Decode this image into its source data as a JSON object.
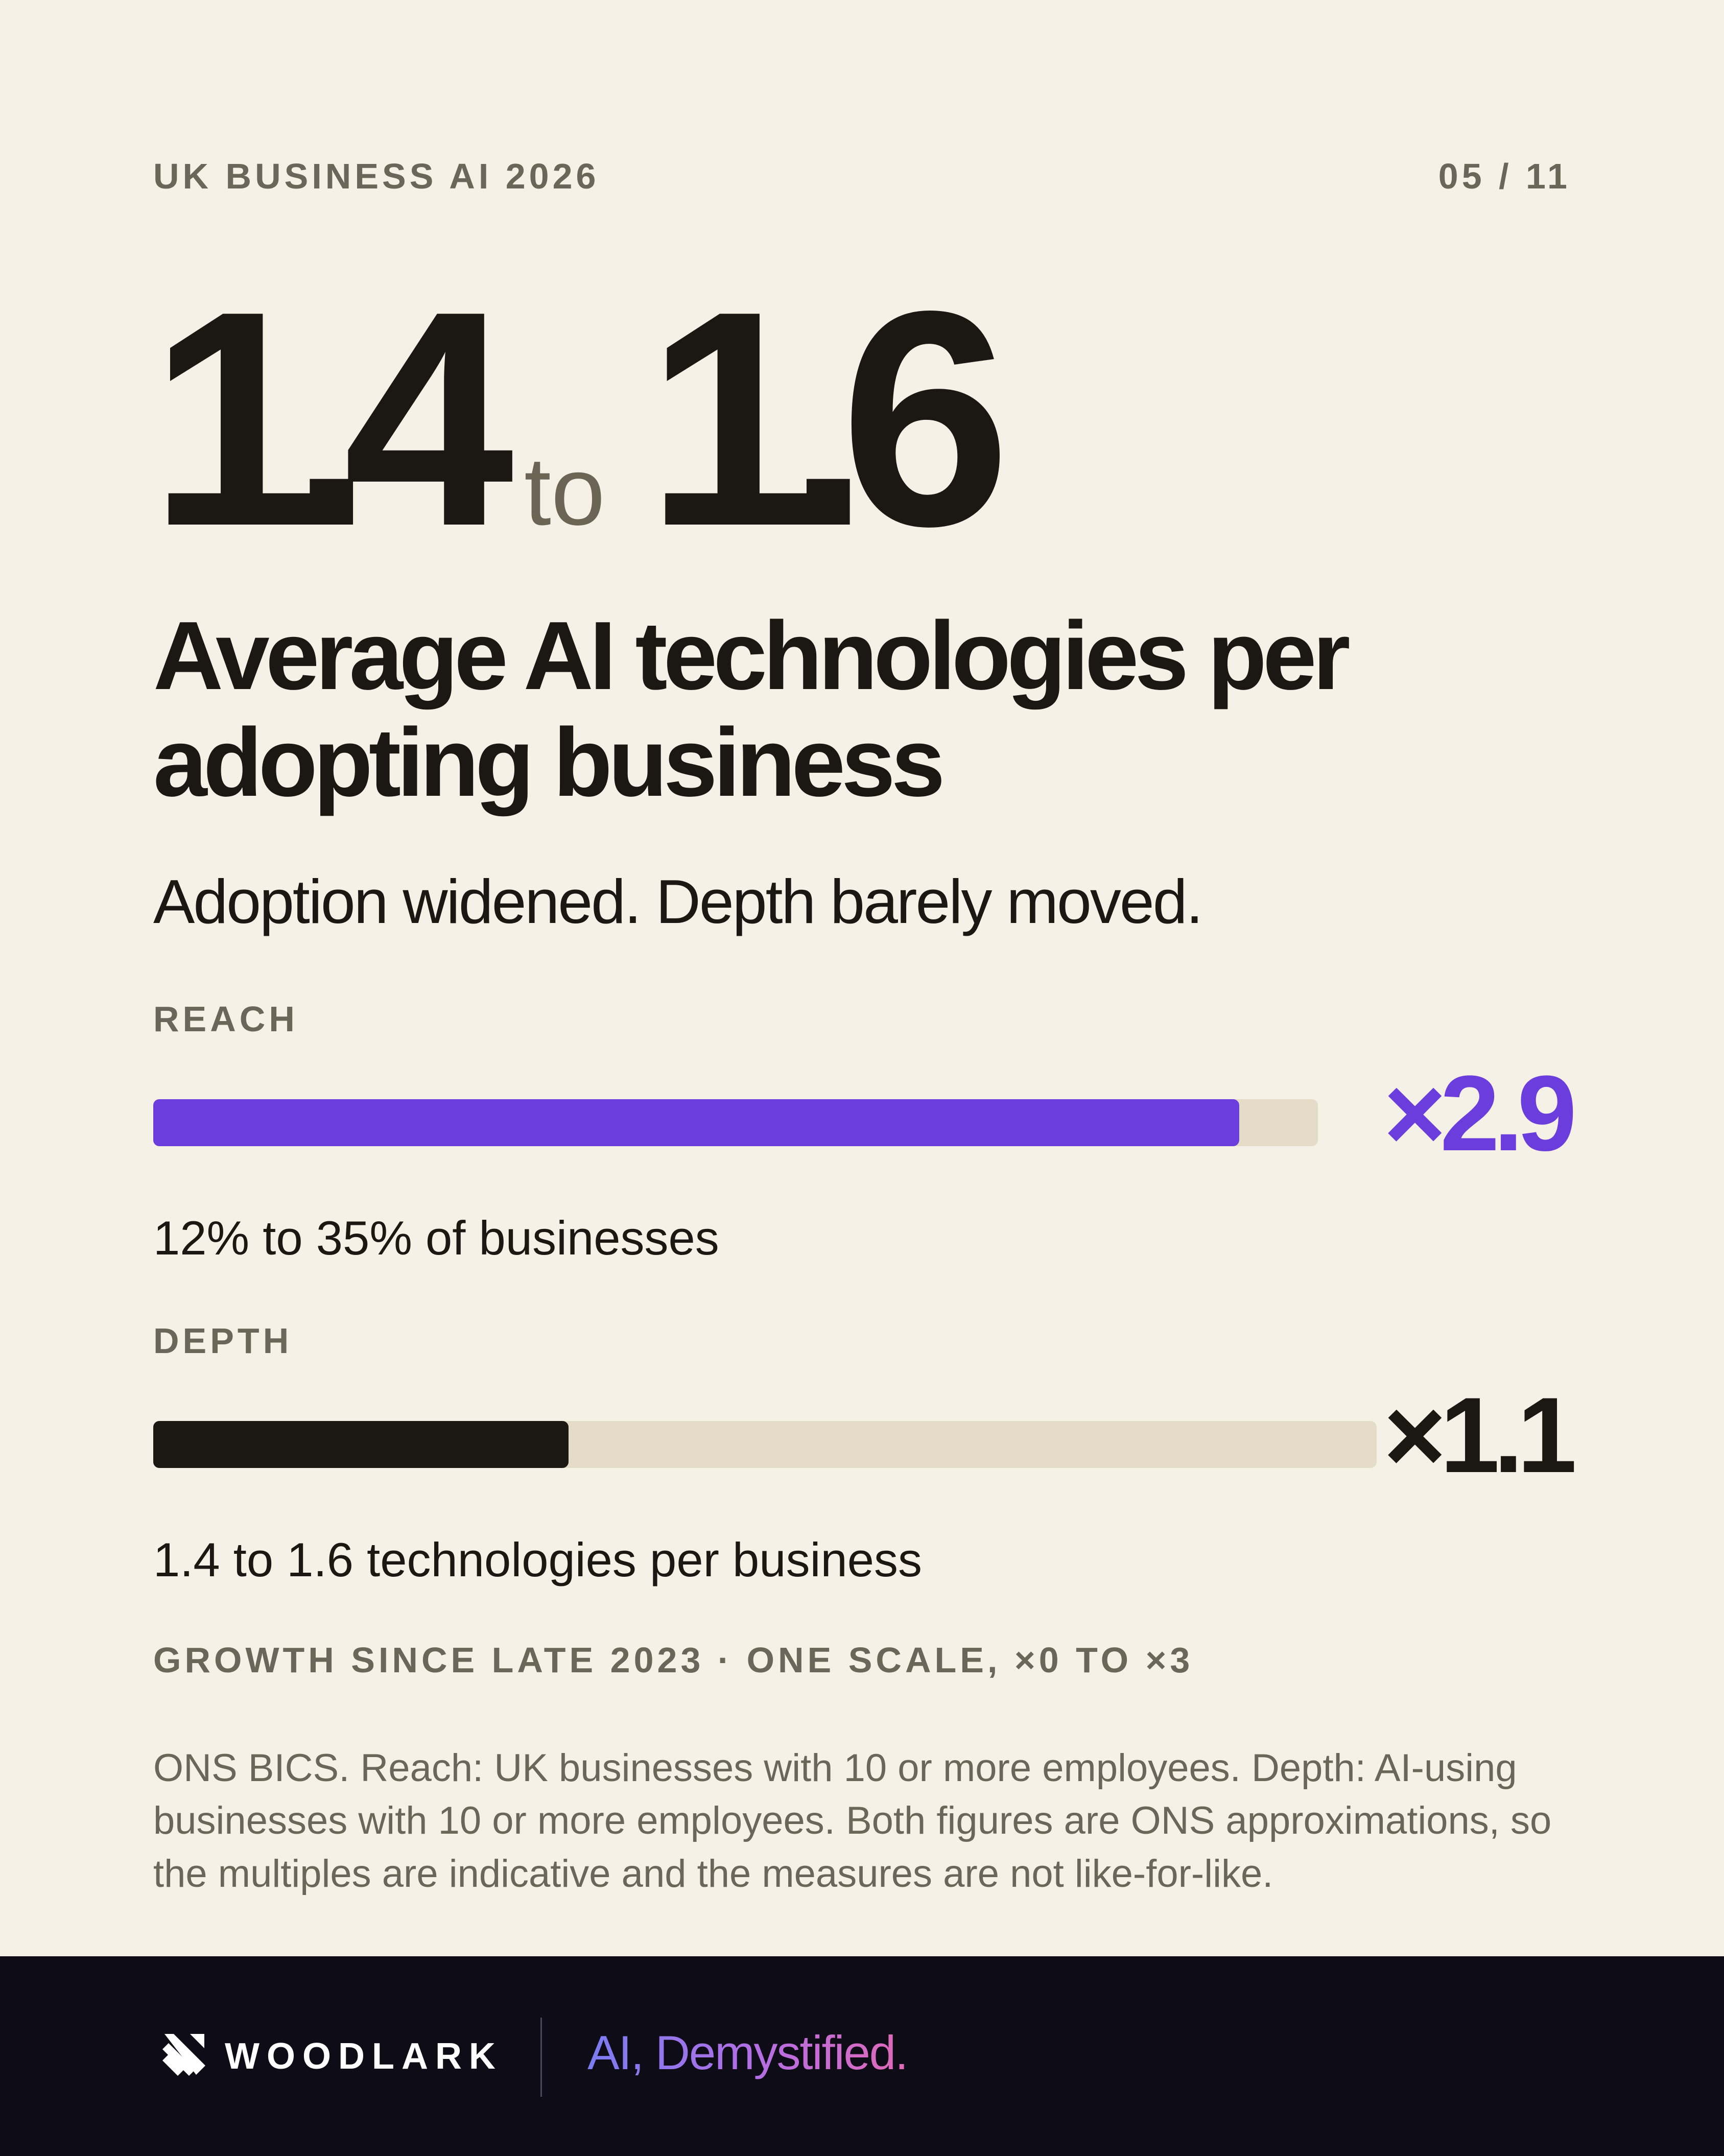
{
  "header": {
    "eyebrow": "UK BUSINESS AI 2026",
    "page_number": "05 / 11"
  },
  "hero": {
    "from": "1.4",
    "connector": "to",
    "to": "1.6"
  },
  "headline": "Average AI technologies per adopting business",
  "subhead": "Adoption widened. Depth barely moved.",
  "reach": {
    "label": "REACH",
    "multiplier": "×2.9",
    "value": 2.9,
    "note": "12% to 35% of businesses",
    "color": "#6b3ddc"
  },
  "depth": {
    "label": "DEPTH",
    "multiplier": "×1.1",
    "value": 1.1,
    "note": "1.4 to 1.6 technologies per business",
    "color": "#1b1712"
  },
  "scale": {
    "note": "GROWTH SINCE LATE 2023 · ONE SCALE, ×0 TO ×3",
    "min": 0,
    "max": 3
  },
  "source": "ONS BICS. Reach: UK businesses with 10 or more employees. Depth: AI-using businesses with 10 or more employees. Both figures are ONS approximations, so the multiples are indicative and the measures are not like-for-like.",
  "footer": {
    "brand": "WOODLARK",
    "logo_icon": "woodlark-logo-icon",
    "tagline": "AI, Demystified."
  },
  "colors": {
    "background": "#f5f1e7",
    "track": "#e5dcc8",
    "accent": "#6b3ddc",
    "footer": "#0e0c16"
  }
}
